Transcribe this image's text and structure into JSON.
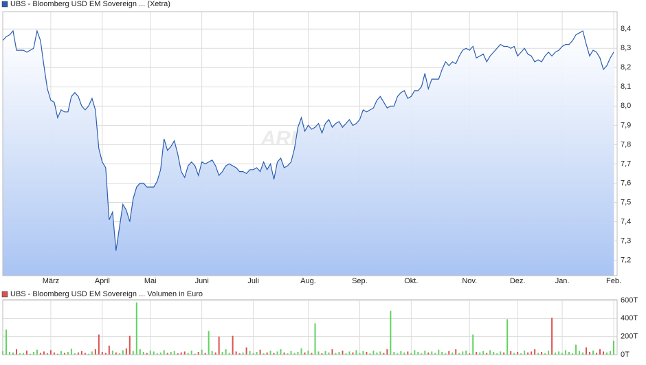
{
  "chart_data": [
    {
      "type": "line",
      "title": "UBS - Bloomberg USD EM Sovereign ... (Xetra)",
      "color": "#2a5db0",
      "watermark": "ARIVA.DE",
      "grid": true,
      "values": [
        8.34,
        8.36,
        8.37,
        8.39,
        8.29,
        8.29,
        8.29,
        8.28,
        8.29,
        8.3,
        8.39,
        8.34,
        8.21,
        8.09,
        8.03,
        8.02,
        7.94,
        7.98,
        7.97,
        7.97,
        8.05,
        8.07,
        8.05,
        8.0,
        7.98,
        8.0,
        8.04,
        7.98,
        7.78,
        7.71,
        7.68,
        7.41,
        7.45,
        7.25,
        7.37,
        7.49,
        7.46,
        7.4,
        7.52,
        7.58,
        7.6,
        7.6,
        7.58,
        7.58,
        7.58,
        7.61,
        7.67,
        7.83,
        7.77,
        7.79,
        7.82,
        7.75,
        7.66,
        7.63,
        7.69,
        7.71,
        7.69,
        7.64,
        7.71,
        7.7,
        7.71,
        7.72,
        7.69,
        7.64,
        7.66,
        7.69,
        7.7,
        7.69,
        7.68,
        7.66,
        7.66,
        7.65,
        7.67,
        7.67,
        7.68,
        7.66,
        7.71,
        7.67,
        7.7,
        7.62,
        7.71,
        7.73,
        7.68,
        7.69,
        7.71,
        7.78,
        7.89,
        7.94,
        7.87,
        7.9,
        7.88,
        7.89,
        7.91,
        7.86,
        7.91,
        7.93,
        7.89,
        7.91,
        7.92,
        7.89,
        7.91,
        7.93,
        7.9,
        7.91,
        7.93,
        7.98,
        7.97,
        7.98,
        7.99,
        8.03,
        8.05,
        8.02,
        7.99,
        8.0,
        8.0,
        8.05,
        8.07,
        8.08,
        8.04,
        8.05,
        8.08,
        8.08,
        8.1,
        8.17,
        8.09,
        8.14,
        8.14,
        8.14,
        8.19,
        8.23,
        8.21,
        8.23,
        8.22,
        8.26,
        8.29,
        8.3,
        8.29,
        8.31,
        8.25,
        8.26,
        8.27,
        8.23,
        8.26,
        8.28,
        8.3,
        8.32,
        8.31,
        8.31,
        8.3,
        8.31,
        8.26,
        8.28,
        8.3,
        8.27,
        8.26,
        8.23,
        8.24,
        8.23,
        8.26,
        8.28,
        8.26,
        8.28,
        8.29,
        8.31,
        8.32,
        8.32,
        8.34,
        8.37,
        8.38,
        8.39,
        8.32,
        8.26,
        8.29,
        8.28,
        8.25,
        8.19,
        8.21,
        8.25,
        8.28
      ],
      "xlim": [
        0,
        179
      ],
      "xticks": [
        {
          "value": 14,
          "label": "März"
        },
        {
          "value": 29,
          "label": "April"
        },
        {
          "value": 43,
          "label": "Mai"
        },
        {
          "value": 58,
          "label": "Juni"
        },
        {
          "value": 73,
          "label": "Juli"
        },
        {
          "value": 89,
          "label": "Aug."
        },
        {
          "value": 104,
          "label": "Sep."
        },
        {
          "value": 119,
          "label": "Okt."
        },
        {
          "value": 136,
          "label": "Nov."
        },
        {
          "value": 150,
          "label": "Dez."
        },
        {
          "value": 163,
          "label": "Jan."
        },
        {
          "value": 178,
          "label": "Feb."
        }
      ],
      "ylim": [
        7.12,
        8.49
      ],
      "yticks": [
        {
          "value": 7.2,
          "label": "7,2"
        },
        {
          "value": 7.3,
          "label": "7,3"
        },
        {
          "value": 7.4,
          "label": "7,4"
        },
        {
          "value": 7.5,
          "label": "7,5"
        },
        {
          "value": 7.6,
          "label": "7,6"
        },
        {
          "value": 7.7,
          "label": "7,7"
        },
        {
          "value": 7.8,
          "label": "7,8"
        },
        {
          "value": 7.9,
          "label": "7,9"
        },
        {
          "value": 8.0,
          "label": "8,0"
        },
        {
          "value": 8.1,
          "label": "8,1"
        },
        {
          "value": 8.2,
          "label": "8,2"
        },
        {
          "value": 8.3,
          "label": "8,3"
        },
        {
          "value": 8.4,
          "label": "8,4"
        }
      ]
    },
    {
      "type": "bar",
      "title": "UBS - Bloomberg USD EM Sovereign ... Volumen in Euro",
      "up_color": "#5fd35f",
      "down_color": "#d9534f",
      "grid": true,
      "values": [
        40,
        277,
        30,
        25,
        60,
        15,
        20,
        45,
        10,
        30,
        55,
        20,
        35,
        15,
        50,
        25,
        10,
        40,
        20,
        30,
        65,
        15,
        25,
        40,
        20,
        10,
        35,
        60,
        223,
        30,
        20,
        100,
        45,
        25,
        15,
        50,
        70,
        208,
        40,
        577,
        60,
        30,
        20,
        45,
        35,
        15,
        25,
        50,
        20,
        30,
        40,
        15,
        25,
        35,
        20,
        45,
        10,
        30,
        55,
        20,
        262,
        40,
        25,
        200,
        30,
        60,
        20,
        208,
        35,
        15,
        25,
        80,
        40,
        20,
        30,
        55,
        15,
        25,
        45,
        20,
        35,
        60,
        25,
        15,
        40,
        20,
        30,
        70,
        25,
        45,
        20,
        346,
        35,
        15,
        40,
        25,
        60,
        20,
        30,
        45,
        15,
        35,
        25,
        50,
        20,
        40,
        30,
        15,
        45,
        25,
        35,
        20,
        60,
        485,
        30,
        15,
        40,
        25,
        35,
        20,
        50,
        30,
        15,
        45,
        25,
        35,
        20,
        55,
        30,
        15,
        40,
        25,
        60,
        20,
        35,
        45,
        15,
        223,
        30,
        25,
        40,
        20,
        50,
        30,
        15,
        35,
        25,
        392,
        40,
        20,
        30,
        15,
        45,
        25,
        35,
        60,
        20,
        30,
        15,
        45,
        408,
        25,
        35,
        20,
        50,
        30,
        15,
        110,
        40,
        25,
        80,
        30,
        45,
        20,
        60,
        35,
        25,
        40,
        154
      ],
      "xlim": [
        0,
        179
      ],
      "ylim": [
        0,
        600
      ],
      "yticks": [
        {
          "value": 0,
          "label": "0T"
        },
        {
          "value": 200,
          "label": "200T"
        },
        {
          "value": 400,
          "label": "400T"
        },
        {
          "value": 600,
          "label": "600T"
        }
      ]
    }
  ]
}
